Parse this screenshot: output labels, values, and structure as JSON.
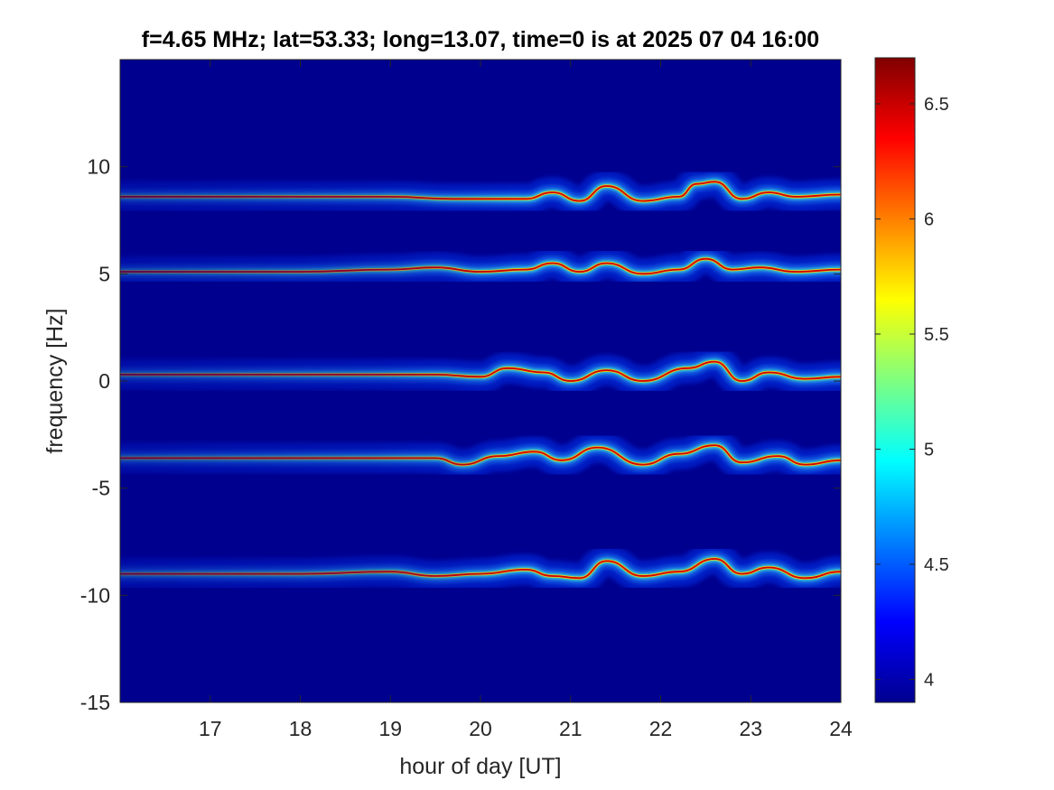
{
  "chart_data": {
    "type": "heatmap",
    "title": "f=4.65 MHz;  lat=53.33; long=13.07, time=0 is at 2025 07 04 16:00",
    "xlabel": "hour of day [UT]",
    "ylabel": "frequency [Hz]",
    "xlim": [
      16,
      24
    ],
    "ylim": [
      -15,
      15
    ],
    "x_ticks": [
      "17",
      "18",
      "19",
      "20",
      "21",
      "22",
      "23",
      "24"
    ],
    "y_ticks": [
      "-15",
      "-10",
      "-5",
      "0",
      "5",
      "10"
    ],
    "x_tick_values": [
      17,
      18,
      19,
      20,
      21,
      22,
      23,
      24
    ],
    "y_tick_values": [
      -15,
      -10,
      -5,
      0,
      5,
      10
    ],
    "colorbar": {
      "colormap": "jet",
      "range": [
        3.9,
        6.7
      ],
      "ticks": [
        "4",
        "4.5",
        "5",
        "5.5",
        "6",
        "6.5"
      ],
      "tick_values": [
        4,
        4.5,
        5,
        5.5,
        6,
        6.5
      ]
    },
    "background_color": "#00008f",
    "traces": [
      {
        "base_frequency": 8.6,
        "points": [
          [
            16.0,
            8.6
          ],
          [
            18.0,
            8.6
          ],
          [
            19.0,
            8.6
          ],
          [
            19.7,
            8.5
          ],
          [
            20.5,
            8.5
          ],
          [
            20.8,
            8.8
          ],
          [
            21.1,
            8.4
          ],
          [
            21.4,
            9.1
          ],
          [
            21.8,
            8.4
          ],
          [
            22.2,
            8.6
          ],
          [
            22.4,
            9.2
          ],
          [
            22.6,
            9.3
          ],
          [
            22.9,
            8.5
          ],
          [
            23.2,
            8.8
          ],
          [
            23.5,
            8.6
          ],
          [
            24.0,
            8.7
          ]
        ]
      },
      {
        "base_frequency": 5.1,
        "points": [
          [
            16.0,
            5.1
          ],
          [
            18.0,
            5.1
          ],
          [
            19.0,
            5.2
          ],
          [
            19.5,
            5.3
          ],
          [
            20.0,
            5.1
          ],
          [
            20.5,
            5.2
          ],
          [
            20.8,
            5.5
          ],
          [
            21.1,
            5.1
          ],
          [
            21.4,
            5.5
          ],
          [
            21.8,
            5.0
          ],
          [
            22.2,
            5.2
          ],
          [
            22.5,
            5.7
          ],
          [
            22.8,
            5.2
          ],
          [
            23.1,
            5.3
          ],
          [
            23.5,
            5.1
          ],
          [
            24.0,
            5.2
          ]
        ]
      },
      {
        "base_frequency": 0.3,
        "points": [
          [
            16.0,
            0.3
          ],
          [
            18.0,
            0.3
          ],
          [
            19.0,
            0.3
          ],
          [
            19.5,
            0.3
          ],
          [
            20.0,
            0.2
          ],
          [
            20.3,
            0.6
          ],
          [
            20.7,
            0.4
          ],
          [
            21.0,
            0.0
          ],
          [
            21.4,
            0.5
          ],
          [
            21.8,
            0.0
          ],
          [
            22.3,
            0.6
          ],
          [
            22.6,
            0.9
          ],
          [
            22.9,
            0.0
          ],
          [
            23.2,
            0.4
          ],
          [
            23.6,
            0.1
          ],
          [
            24.0,
            0.2
          ]
        ]
      },
      {
        "base_frequency": -3.6,
        "points": [
          [
            16.0,
            -3.6
          ],
          [
            18.0,
            -3.6
          ],
          [
            19.0,
            -3.6
          ],
          [
            19.5,
            -3.6
          ],
          [
            19.8,
            -3.9
          ],
          [
            20.2,
            -3.5
          ],
          [
            20.6,
            -3.3
          ],
          [
            20.9,
            -3.7
          ],
          [
            21.3,
            -3.1
          ],
          [
            21.8,
            -3.9
          ],
          [
            22.2,
            -3.4
          ],
          [
            22.6,
            -3.0
          ],
          [
            22.9,
            -3.8
          ],
          [
            23.3,
            -3.5
          ],
          [
            23.6,
            -3.9
          ],
          [
            24.0,
            -3.7
          ]
        ]
      },
      {
        "base_frequency": -9.0,
        "points": [
          [
            16.0,
            -9.0
          ],
          [
            18.0,
            -9.0
          ],
          [
            19.0,
            -8.9
          ],
          [
            19.5,
            -9.1
          ],
          [
            20.0,
            -9.0
          ],
          [
            20.5,
            -8.8
          ],
          [
            20.8,
            -9.1
          ],
          [
            21.1,
            -9.2
          ],
          [
            21.4,
            -8.4
          ],
          [
            21.8,
            -9.1
          ],
          [
            22.2,
            -8.9
          ],
          [
            22.6,
            -8.3
          ],
          [
            22.9,
            -9.0
          ],
          [
            23.2,
            -8.7
          ],
          [
            23.6,
            -9.2
          ],
          [
            24.0,
            -8.9
          ]
        ]
      }
    ]
  }
}
